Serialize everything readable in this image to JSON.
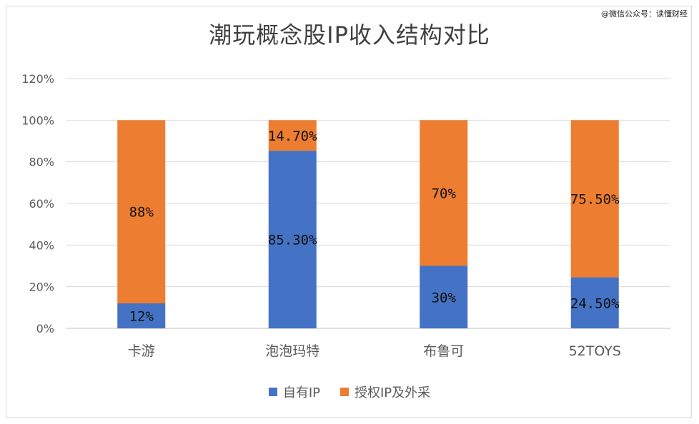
{
  "watermark": "@微信公众号：读懂财经",
  "chart_data": {
    "type": "bar",
    "stacked": true,
    "title": "潮玩概念股IP收入结构对比",
    "categories": [
      "卡游",
      "泡泡玛特",
      "布鲁可",
      "52TOYS"
    ],
    "series": [
      {
        "name": "自有IP",
        "color": "#4472C4",
        "values": [
          12,
          85.3,
          30,
          24.5
        ],
        "labels": [
          "12%",
          "85.30%",
          "30%",
          "24.50%"
        ]
      },
      {
        "name": "授权IP及外采",
        "color": "#ED7D31",
        "values": [
          88,
          14.7,
          70,
          75.5
        ],
        "labels": [
          "88%",
          "14.70%",
          "70%",
          "75.50%"
        ]
      }
    ],
    "y_ticks": [
      "0%",
      "20%",
      "40%",
      "60%",
      "80%",
      "100%",
      "120%"
    ],
    "ylim": [
      0,
      120
    ],
    "grid": true,
    "legend_position": "bottom"
  }
}
